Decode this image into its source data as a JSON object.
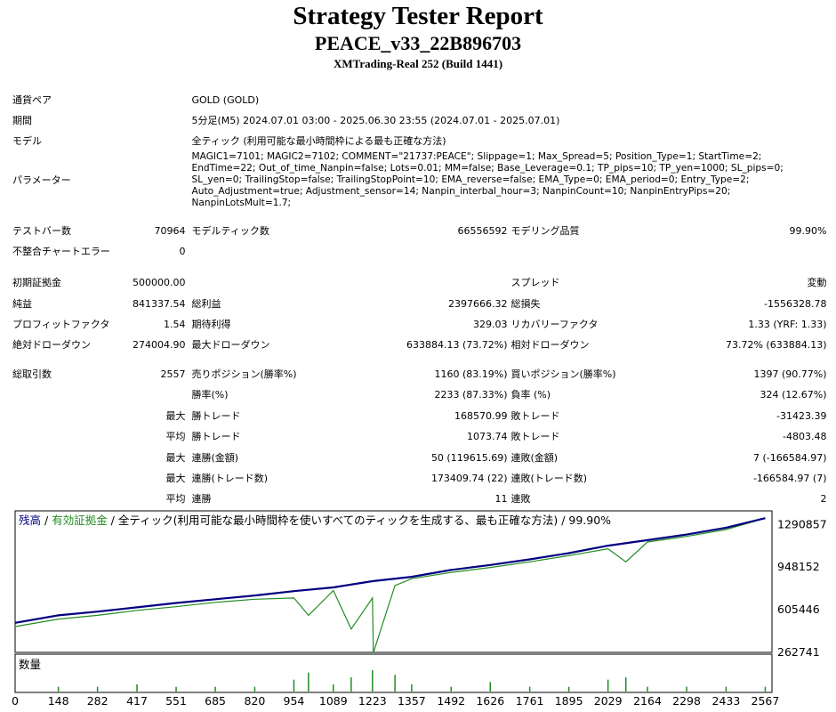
{
  "header": {
    "title": "Strategy Tester Report",
    "expert": "PEACE_v33_22B896703",
    "server": "XMTrading-Real 252 (Build 1441)"
  },
  "settings": {
    "symbol_label": "通貨ペア",
    "symbol_value": "GOLD (GOLD)",
    "period_label": "期間",
    "period_value": "5分足(M5) 2024.07.01 03:00 - 2025.06.30 23:55 (2024.07.01 - 2025.07.01)",
    "model_label": "モデル",
    "model_value": "全ティック (利用可能な最小時間枠による最も正確な方法)",
    "params_label": "パラメーター",
    "params_value": "MAGIC1=7101; MAGIC2=7102; COMMENT=\"21737:PEACE\"; Slippage=1; Max_Spread=5; Position_Type=1; StartTime=2; EndTime=22; Out_of_time_Nanpin=false; Lots=0.01; MM=false; Base_Leverage=0.1; TP_pips=10; TP_yen=1000; SL_pips=0; SL_yen=0; TrailingStop=false; TrailingStopPoint=10; EMA_reverse=false; EMA_Type=0; EMA_period=0; Entry_Type=2; Auto_Adjustment=true; Adjustment_sensor=14; Nanpin_interbal_hour=3; NanpinCount=10; NanpinEntryPips=20; NanpinLotsMult=1.7;"
  },
  "bars": {
    "bars_label": "テストバー数",
    "bars_value": "70964",
    "ticks_label": "モデルティック数",
    "ticks_value": "66556592",
    "quality_label": "モデリング品質",
    "quality_value": "99.90%",
    "errors_label": "不整合チャートエラー",
    "errors_value": "0"
  },
  "money": {
    "deposit_label": "初期証拠金",
    "deposit_value": "500000.00",
    "spread_label": "スプレッド",
    "spread_value": "変動",
    "net_label": "純益",
    "net_value": "841337.54",
    "gross_profit_label": "総利益",
    "gross_profit_value": "2397666.32",
    "gross_loss_label": "総損失",
    "gross_loss_value": "-1556328.78",
    "pf_label": "プロフィットファクタ",
    "pf_value": "1.54",
    "expected_label": "期待利得",
    "expected_value": "329.03",
    "recovery_label": "リカバリーファクタ",
    "recovery_value": "1.33 (YRF: 1.33)",
    "abs_dd_label": "絶対ドローダウン",
    "abs_dd_value": "274004.90",
    "max_dd_label": "最大ドローダウン",
    "max_dd_value": "633884.13 (73.72%)",
    "rel_dd_label": "相対ドローダウン",
    "rel_dd_value": "73.72% (633884.13)"
  },
  "trades": {
    "total_label": "総取引数",
    "total_value": "2557",
    "short_label": "売りポジション(勝率%)",
    "short_value": "1160 (83.19%)",
    "long_label": "買いポジション(勝率%)",
    "long_value": "1397 (90.77%)",
    "win_rate_label": "勝率(%)",
    "win_rate_value": "2233 (87.33%)",
    "loss_rate_label": "負率 (%)",
    "loss_rate_value": "324 (12.67%)",
    "largest_label": "最大",
    "largest_win_label": "勝トレード",
    "largest_win_value": "168570.99",
    "largest_loss_label": "敗トレード",
    "largest_loss_value": "-31423.39",
    "average_label": "平均",
    "avg_win_label": "勝トレード",
    "avg_win_value": "1073.74",
    "avg_loss_label": "敗トレード",
    "avg_loss_value": "-4803.48",
    "max1_label": "最大",
    "consec_win_amt_label": "連勝(金額)",
    "consec_win_amt_value": "50 (119615.69)",
    "consec_loss_amt_label": "連敗(金額)",
    "consec_loss_amt_value": "7 (-166584.97)",
    "max2_label": "最大",
    "consec_win_cnt_label": "連勝(トレード数)",
    "consec_win_cnt_value": "173409.74 (22)",
    "consec_loss_cnt_label": "連敗(トレード数)",
    "consec_loss_cnt_value": "-166584.97 (7)",
    "avg2_label": "平均",
    "avg_consec_win_label": "連勝",
    "avg_consec_win_value": "11",
    "avg_consec_loss_label": "連敗",
    "avg_consec_loss_value": "2"
  },
  "chart": {
    "legend_balance": "残高",
    "legend_sep1": " / ",
    "legend_equity": "有効証拠金",
    "legend_rest": " / 全ティック(利用可能な最小時間枠を使いすべてのティックを生成する、最も正確な方法) / 99.90%",
    "volume_label": "数量",
    "balance_color": "#000080",
    "equity_color": "#228B22",
    "volume_color": "#228B22"
  },
  "chart_data": {
    "type": "line",
    "legend": "残高 / 有効証拠金",
    "x_ticks": [
      "0",
      "148",
      "282",
      "417",
      "551",
      "685",
      "820",
      "954",
      "1089",
      "1223",
      "1357",
      "1492",
      "1626",
      "1761",
      "1895",
      "2029",
      "2164",
      "2298",
      "2433",
      "2567"
    ],
    "y_ticks": [
      "1290857",
      "948152",
      "605446",
      "262741"
    ],
    "xlim": [
      0,
      2590
    ],
    "ylim": [
      262741,
      1400000
    ],
    "series": [
      {
        "name": "残高",
        "x": [
          0,
          148,
          282,
          417,
          551,
          685,
          820,
          954,
          1089,
          1223,
          1357,
          1492,
          1626,
          1761,
          1895,
          2029,
          2164,
          2298,
          2433,
          2567
        ],
        "y": [
          500000,
          560000,
          590000,
          625000,
          660000,
          690000,
          720000,
          755000,
          785000,
          835000,
          870000,
          925000,
          965000,
          1010000,
          1060000,
          1120000,
          1165000,
          1210000,
          1265000,
          1341337
        ]
      },
      {
        "name": "有効証拠金",
        "x": [
          0,
          148,
          282,
          417,
          551,
          685,
          820,
          954,
          1004,
          1089,
          1150,
          1223,
          1226,
          1300,
          1357,
          1492,
          1626,
          1761,
          1895,
          2029,
          2090,
          2164,
          2298,
          2433,
          2567
        ],
        "y": [
          470000,
          530000,
          560000,
          600000,
          630000,
          665000,
          690000,
          700000,
          560000,
          760000,
          450000,
          700000,
          260000,
          800000,
          855000,
          905000,
          945000,
          990000,
          1040000,
          1095000,
          990000,
          1150000,
          1195000,
          1250000,
          1341337
        ]
      }
    ],
    "volume": {
      "x": [
        148,
        282,
        417,
        551,
        685,
        820,
        954,
        1004,
        1089,
        1150,
        1223,
        1300,
        1357,
        1492,
        1626,
        1761,
        1895,
        2029,
        2090,
        2164,
        2298,
        2433,
        2567
      ],
      "y": [
        2,
        2,
        3,
        2,
        2,
        2,
        5,
        8,
        3,
        6,
        9,
        7,
        3,
        2,
        4,
        2,
        2,
        5,
        6,
        2,
        2,
        2,
        2
      ]
    }
  }
}
